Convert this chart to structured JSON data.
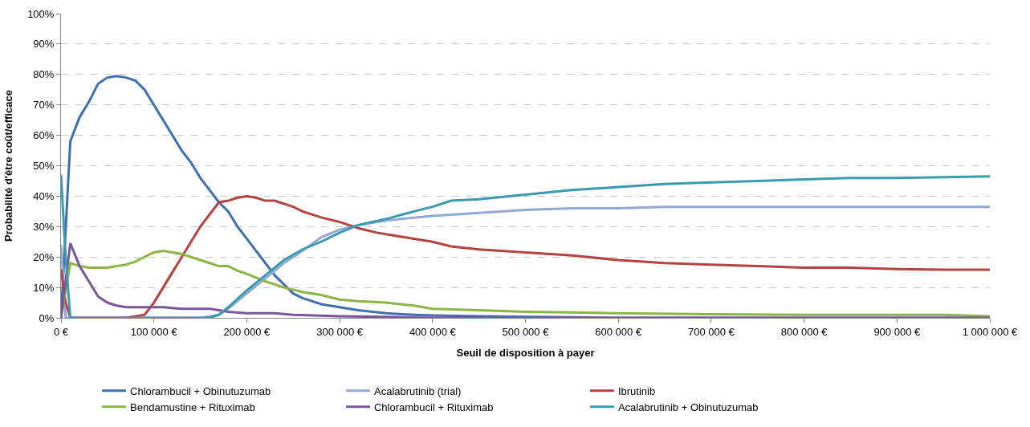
{
  "chart_data": {
    "type": "line",
    "xlabel": "Seuil de disposition à payer",
    "ylabel": "Probabilité d'être coût/efficace",
    "xlim": [
      0,
      1000000
    ],
    "xticks": [
      {
        "value": 0,
        "label": "0 €"
      },
      {
        "value": 100000,
        "label": "100 000 €"
      },
      {
        "value": 200000,
        "label": "200 000 €"
      },
      {
        "value": 300000,
        "label": "300 000 €"
      },
      {
        "value": 400000,
        "label": "400 000 €"
      },
      {
        "value": 500000,
        "label": "500 000 €"
      },
      {
        "value": 600000,
        "label": "600 000 €"
      },
      {
        "value": 700000,
        "label": "700 000 €"
      },
      {
        "value": 800000,
        "label": "800 000 €"
      },
      {
        "value": 900000,
        "label": "900 000 €"
      },
      {
        "value": 1000000,
        "label": "1 000 000 €"
      }
    ],
    "ylim": [
      0,
      100
    ],
    "yticks": [
      {
        "value": 0,
        "label": "0%"
      },
      {
        "value": 10,
        "label": "10%"
      },
      {
        "value": 20,
        "label": "20%"
      },
      {
        "value": 30,
        "label": "30%"
      },
      {
        "value": 40,
        "label": "40%"
      },
      {
        "value": 50,
        "label": "50%"
      },
      {
        "value": 60,
        "label": "60%"
      },
      {
        "value": 70,
        "label": "70%"
      },
      {
        "value": 80,
        "label": "80%"
      },
      {
        "value": 90,
        "label": "90%"
      },
      {
        "value": 100,
        "label": "100%"
      }
    ],
    "grid": "y",
    "legend": "bottom",
    "marker": "none",
    "line_style": "solid",
    "series": [
      {
        "name": "Chlorambucil + Obinutuzumab",
        "color": "#3f6fb0",
        "x": [
          0,
          10000,
          20000,
          30000,
          40000,
          50000,
          60000,
          70000,
          80000,
          90000,
          100000,
          110000,
          120000,
          130000,
          140000,
          150000,
          160000,
          170000,
          180000,
          190000,
          200000,
          210000,
          220000,
          230000,
          240000,
          250000,
          260000,
          270000,
          280000,
          300000,
          320000,
          350000,
          380000,
          400000,
          450000,
          500000,
          550000,
          600000,
          1000000
        ],
        "values": [
          0,
          58,
          66,
          71,
          77,
          79,
          79.5,
          79,
          78,
          75,
          70,
          65,
          60,
          55,
          51,
          46,
          42,
          38,
          35,
          30,
          26,
          22,
          18,
          14,
          11,
          8,
          6.5,
          5.5,
          4.5,
          3.5,
          2.5,
          1.5,
          1,
          0.8,
          0.5,
          0.3,
          0.2,
          0,
          0
        ]
      },
      {
        "name": "Acalabrutinib (trial)",
        "color": "#93a9d6",
        "x": [
          0,
          5000,
          10000,
          150000,
          170000,
          180000,
          200000,
          220000,
          240000,
          260000,
          280000,
          300000,
          320000,
          350000,
          400000,
          450000,
          500000,
          550000,
          600000,
          650000,
          700000,
          800000,
          900000,
          1000000
        ],
        "values": [
          24,
          0,
          0,
          0,
          1,
          3,
          8,
          13,
          18,
          22,
          26.5,
          29,
          30.5,
          32,
          33.5,
          34.5,
          35.5,
          36,
          36,
          36.5,
          36.5,
          36.5,
          36.5,
          36.5
        ]
      },
      {
        "name": "Ibrutinib",
        "color": "#b7413e",
        "x": [
          0,
          5000,
          10000,
          70000,
          90000,
          100000,
          110000,
          120000,
          130000,
          140000,
          150000,
          160000,
          170000,
          180000,
          190000,
          200000,
          210000,
          220000,
          230000,
          240000,
          250000,
          260000,
          280000,
          300000,
          320000,
          340000,
          360000,
          380000,
          400000,
          420000,
          450000,
          500000,
          550000,
          600000,
          650000,
          700000,
          750000,
          800000,
          850000,
          900000,
          950000,
          1000000
        ],
        "values": [
          16,
          5,
          0,
          0,
          1,
          5,
          10,
          15,
          20,
          25,
          30,
          34,
          38,
          38.5,
          39.5,
          40,
          39.5,
          38.5,
          38.5,
          37.5,
          36.5,
          35,
          33,
          31.5,
          29.5,
          28,
          27,
          26,
          25,
          23.5,
          22.5,
          21.5,
          20.5,
          19,
          18,
          17.5,
          17,
          16.5,
          16.5,
          16,
          15.8,
          15.8
        ]
      },
      {
        "name": "Bendamustine + Rituximab",
        "color": "#8db544",
        "x": [
          0,
          10000,
          20000,
          30000,
          50000,
          60000,
          70000,
          80000,
          90000,
          100000,
          110000,
          120000,
          130000,
          140000,
          150000,
          160000,
          170000,
          180000,
          190000,
          200000,
          220000,
          240000,
          260000,
          280000,
          300000,
          320000,
          350000,
          380000,
          400000,
          450000,
          500000,
          550000,
          600000,
          700000,
          800000,
          900000,
          950000,
          1000000
        ],
        "values": [
          0,
          18,
          17,
          16.5,
          16.5,
          17,
          17.5,
          18.5,
          20,
          21.5,
          22,
          21.5,
          21,
          20,
          19,
          18,
          17,
          17,
          15.5,
          14.5,
          12,
          10,
          8.5,
          7.5,
          6,
          5.5,
          5,
          4,
          3,
          2.5,
          2,
          1.8,
          1.5,
          1.2,
          1,
          1,
          1,
          0.5
        ]
      },
      {
        "name": "Chlorambucil + Rituximab",
        "color": "#7a549c",
        "x": [
          0,
          10000,
          20000,
          30000,
          40000,
          50000,
          60000,
          70000,
          80000,
          90000,
          110000,
          130000,
          160000,
          170000,
          180000,
          200000,
          230000,
          250000,
          300000,
          350000,
          400000,
          1000000
        ],
        "values": [
          0,
          24.5,
          17,
          12,
          7,
          5,
          4,
          3.5,
          3.5,
          3.5,
          3.5,
          3,
          3,
          2.5,
          2,
          1.5,
          1.5,
          1,
          0.5,
          0.3,
          0,
          0
        ]
      },
      {
        "name": "Acalabrutinib + Obinutuzumab",
        "color": "#3a9ab0",
        "x": [
          0,
          5000,
          10000,
          160000,
          170000,
          180000,
          200000,
          220000,
          240000,
          260000,
          280000,
          300000,
          320000,
          350000,
          380000,
          400000,
          420000,
          450000,
          500000,
          550000,
          600000,
          650000,
          700000,
          750000,
          800000,
          850000,
          900000,
          1000000
        ],
        "values": [
          47,
          20,
          0,
          0,
          1,
          3.5,
          9,
          14,
          19,
          22.5,
          25,
          28,
          30.5,
          32.5,
          35,
          36.5,
          38.5,
          39,
          40.5,
          42,
          43,
          44,
          44.5,
          45,
          45.5,
          46,
          46,
          46.5
        ]
      }
    ]
  }
}
